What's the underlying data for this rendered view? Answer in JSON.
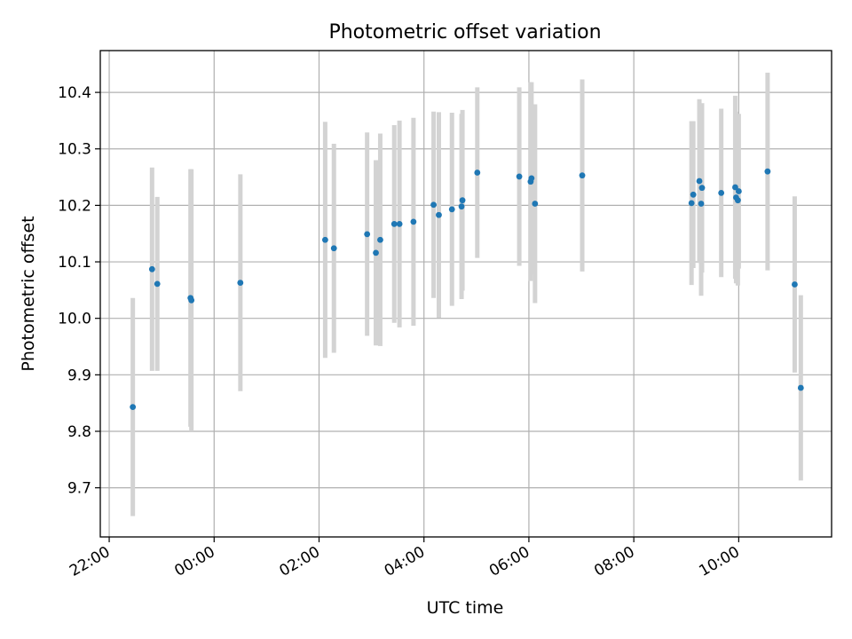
{
  "chart_data": {
    "type": "scatter",
    "title": "Photometric offset variation",
    "xlabel": "UTC time",
    "ylabel": "Photometric offset",
    "x_ticks": [
      "22:00",
      "00:00",
      "02:00",
      "04:00",
      "06:00",
      "08:00",
      "10:00"
    ],
    "x_tick_hours": [
      -2,
      0,
      2,
      4,
      6,
      8,
      10
    ],
    "xlim_hours": [
      -2.17,
      11.77
    ],
    "y_ticks": [
      "9.7",
      "9.8",
      "9.9",
      "10.0",
      "10.1",
      "10.2",
      "10.3",
      "10.4"
    ],
    "y_tick_values": [
      9.7,
      9.8,
      9.9,
      10.0,
      10.1,
      10.2,
      10.3,
      10.4
    ],
    "ylim": [
      9.613,
      10.474
    ],
    "grid": true,
    "series": [
      {
        "marker_color": "#1f77b4",
        "errorbar_color": "#d3d3d3",
        "points": [
          {
            "time": "22:27",
            "y": 9.843,
            "err": 0.193
          },
          {
            "time": "22:49",
            "y": 10.087,
            "err": 0.18
          },
          {
            "time": "22:55",
            "y": 10.061,
            "err": 0.154
          },
          {
            "time": "23:33",
            "y": 10.036,
            "err": 0.228
          },
          {
            "time": "23:34",
            "y": 10.032,
            "err": 0.232
          },
          {
            "time": "00:30",
            "y": 10.063,
            "err": 0.192
          },
          {
            "time": "02:07",
            "y": 10.139,
            "err": 0.209
          },
          {
            "time": "02:17",
            "y": 10.124,
            "err": 0.185
          },
          {
            "time": "02:55",
            "y": 10.149,
            "err": 0.18
          },
          {
            "time": "03:05",
            "y": 10.116,
            "err": 0.164
          },
          {
            "time": "03:10",
            "y": 10.139,
            "err": 0.188
          },
          {
            "time": "03:26",
            "y": 10.167,
            "err": 0.175
          },
          {
            "time": "03:32",
            "y": 10.167,
            "err": 0.183
          },
          {
            "time": "03:48",
            "y": 10.171,
            "err": 0.184
          },
          {
            "time": "04:11",
            "y": 10.201,
            "err": 0.165
          },
          {
            "time": "04:17",
            "y": 10.183,
            "err": 0.182
          },
          {
            "time": "04:32",
            "y": 10.193,
            "err": 0.171
          },
          {
            "time": "04:43",
            "y": 10.198,
            "err": 0.164
          },
          {
            "time": "04:44",
            "y": 10.209,
            "err": 0.16
          },
          {
            "time": "05:01",
            "y": 10.258,
            "err": 0.151
          },
          {
            "time": "05:49",
            "y": 10.251,
            "err": 0.158
          },
          {
            "time": "06:02",
            "y": 10.242,
            "err": 0.176
          },
          {
            "time": "06:03",
            "y": 10.248,
            "err": 0.17
          },
          {
            "time": "06:07",
            "y": 10.203,
            "err": 0.176
          },
          {
            "time": "07:01",
            "y": 10.253,
            "err": 0.17
          },
          {
            "time": "09:06",
            "y": 10.204,
            "err": 0.145
          },
          {
            "time": "09:08",
            "y": 10.219,
            "err": 0.13
          },
          {
            "time": "09:15",
            "y": 10.243,
            "err": 0.145
          },
          {
            "time": "09:17",
            "y": 10.203,
            "err": 0.163
          },
          {
            "time": "09:18",
            "y": 10.231,
            "err": 0.15
          },
          {
            "time": "09:40",
            "y": 10.222,
            "err": 0.149
          },
          {
            "time": "09:56",
            "y": 10.232,
            "err": 0.162
          },
          {
            "time": "09:57",
            "y": 10.214,
            "err": 0.152
          },
          {
            "time": "09:59",
            "y": 10.209,
            "err": 0.151
          },
          {
            "time": "10:00",
            "y": 10.225,
            "err": 0.137
          },
          {
            "time": "10:33",
            "y": 10.26,
            "err": 0.175
          },
          {
            "time": "11:04",
            "y": 10.06,
            "err": 0.156
          },
          {
            "time": "11:11",
            "y": 9.877,
            "err": 0.164
          }
        ]
      }
    ]
  }
}
